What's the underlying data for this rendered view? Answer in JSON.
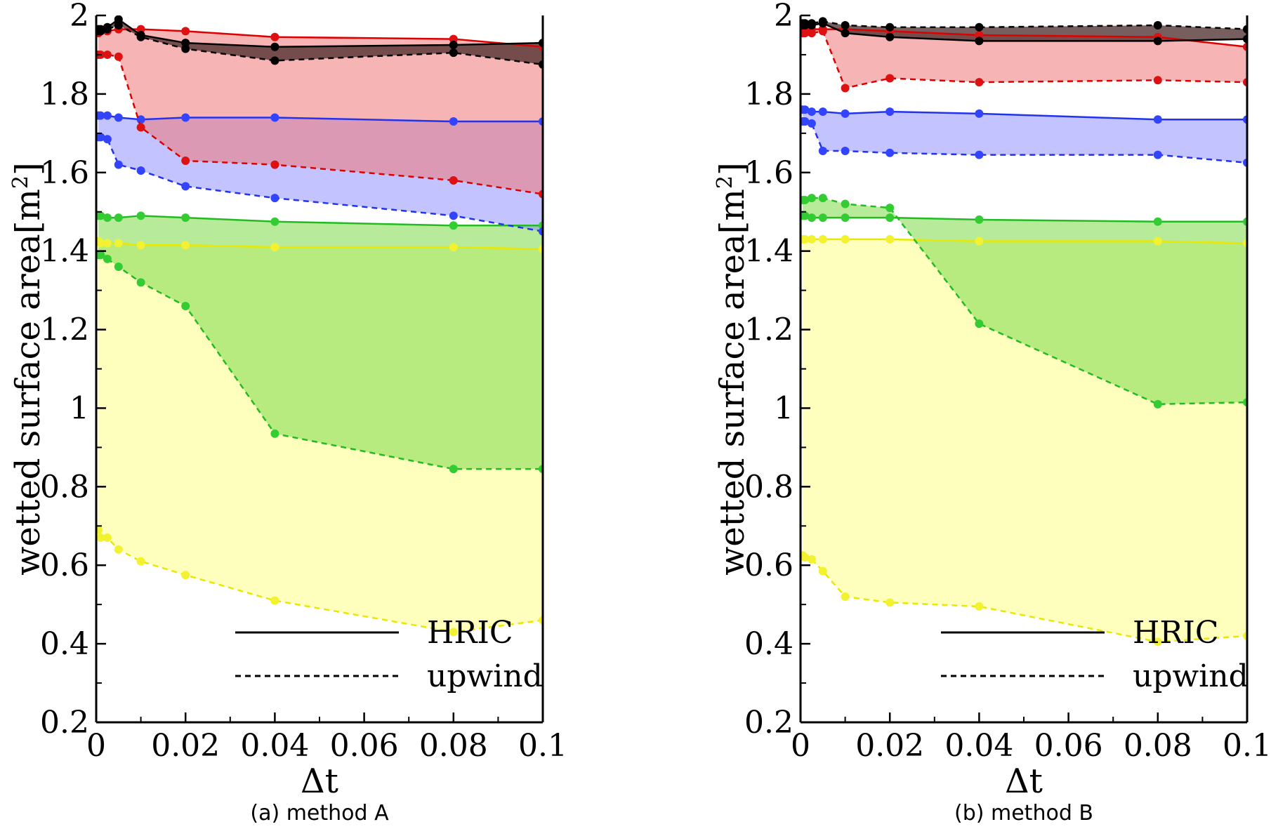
{
  "chart_data": [
    {
      "type": "line",
      "panel": "a",
      "caption": "(a) method A",
      "xlabel": "Δt",
      "ylabel": "wetted surface area[m",
      "ylabel_sup": "2",
      "ylabel_close": "]",
      "xlim": [
        0,
        0.1
      ],
      "ylim": [
        0.2,
        2.0
      ],
      "xticks": [
        0,
        0.02,
        0.04,
        0.06,
        0.08,
        0.1
      ],
      "xtick_labels": [
        "0",
        "0.02",
        "0.04",
        "0.06",
        "0.08",
        "0.1"
      ],
      "yticks": [
        0.2,
        0.4,
        0.6,
        0.8,
        1.0,
        1.2,
        1.4,
        1.6,
        1.8,
        2.0
      ],
      "ytick_labels": [
        "0.2",
        "0.4",
        "0.6",
        "0.8",
        "1",
        "1.2",
        "1.4",
        "1.6",
        "1.8",
        "2"
      ],
      "legend": [
        {
          "label": "HRIC",
          "style": "solid"
        },
        {
          "label": "upwind",
          "style": "dashed"
        }
      ],
      "groups": [
        {
          "name": "yellow",
          "color": "#e8e800",
          "fill": "#ffff99",
          "fill_opacity": 0.65,
          "marker": "#f2f230",
          "x": [
            0.0005,
            0.001,
            0.0025,
            0.005,
            0.01,
            0.02,
            0.04,
            0.08,
            0.1
          ],
          "hric": [
            1.425,
            1.42,
            1.42,
            1.42,
            1.415,
            1.415,
            1.41,
            1.41,
            1.405
          ],
          "upwind": [
            0.69,
            0.67,
            0.67,
            0.64,
            0.61,
            0.575,
            0.51,
            0.43,
            0.46
          ]
        },
        {
          "name": "green",
          "color": "#22bb22",
          "fill": "#88dd55",
          "fill_opacity": 0.6,
          "marker": "#33cc33",
          "x": [
            0.0005,
            0.001,
            0.0025,
            0.005,
            0.01,
            0.02,
            0.04,
            0.08,
            0.1
          ],
          "hric": [
            1.49,
            1.49,
            1.485,
            1.485,
            1.49,
            1.485,
            1.475,
            1.465,
            1.465
          ],
          "upwind": [
            1.39,
            1.39,
            1.38,
            1.36,
            1.32,
            1.26,
            0.935,
            0.845,
            0.845
          ]
        },
        {
          "name": "blue",
          "color": "#2233ee",
          "fill": "#8888ff",
          "fill_opacity": 0.5,
          "marker": "#3344ff",
          "x": [
            0.0005,
            0.001,
            0.0025,
            0.005,
            0.01,
            0.02,
            0.04,
            0.08,
            0.1
          ],
          "hric": [
            1.745,
            1.745,
            1.745,
            1.74,
            1.735,
            1.74,
            1.74,
            1.73,
            1.73
          ],
          "upwind": [
            1.69,
            1.69,
            1.685,
            1.62,
            1.605,
            1.565,
            1.535,
            1.49,
            1.45
          ]
        },
        {
          "name": "red",
          "color": "#dd0000",
          "fill": "#ee7777",
          "fill_opacity": 0.55,
          "marker": "#dd1111",
          "x": [
            0.0005,
            0.001,
            0.0025,
            0.005,
            0.01,
            0.02,
            0.04,
            0.08,
            0.1
          ],
          "hric": [
            1.955,
            1.96,
            1.96,
            1.965,
            1.965,
            1.96,
            1.945,
            1.94,
            1.92
          ],
          "upwind": [
            1.9,
            1.9,
            1.9,
            1.895,
            1.715,
            1.63,
            1.62,
            1.58,
            1.545
          ]
        },
        {
          "name": "black",
          "color": "#000000",
          "fill": "#4a2a2a",
          "fill_opacity": 0.75,
          "marker": "#000000",
          "x": [
            0.0005,
            0.001,
            0.0025,
            0.005,
            0.01,
            0.02,
            0.04,
            0.08,
            0.1
          ],
          "hric": [
            1.965,
            1.965,
            1.97,
            1.99,
            1.95,
            1.93,
            1.92,
            1.925,
            1.93
          ],
          "upwind": [
            1.96,
            1.96,
            1.965,
            1.975,
            1.945,
            1.915,
            1.885,
            1.905,
            1.875
          ]
        }
      ]
    },
    {
      "type": "line",
      "panel": "b",
      "caption": "(b) method B",
      "xlabel": "Δt",
      "ylabel": "wetted surface area[m",
      "ylabel_sup": "2",
      "ylabel_close": "]",
      "xlim": [
        0,
        0.1
      ],
      "ylim": [
        0.2,
        2.0
      ],
      "xticks": [
        0,
        0.02,
        0.04,
        0.06,
        0.08,
        0.1
      ],
      "xtick_labels": [
        "0",
        "0.02",
        "0.04",
        "0.06",
        "0.08",
        "0.1"
      ],
      "yticks": [
        0.2,
        0.4,
        0.6,
        0.8,
        1.0,
        1.2,
        1.4,
        1.6,
        1.8,
        2.0
      ],
      "ytick_labels": [
        "0.2",
        "0.4",
        "0.6",
        "0.8",
        "1",
        "1.2",
        "1.4",
        "1.6",
        "1.8",
        "2"
      ],
      "legend": [
        {
          "label": "HRIC",
          "style": "solid"
        },
        {
          "label": "upwind",
          "style": "dashed"
        }
      ],
      "groups": [
        {
          "name": "yellow",
          "color": "#e8e800",
          "fill": "#ffff99",
          "fill_opacity": 0.65,
          "marker": "#f2f230",
          "x": [
            0.0005,
            0.001,
            0.0025,
            0.005,
            0.01,
            0.02,
            0.04,
            0.08,
            0.1
          ],
          "hric": [
            1.43,
            1.43,
            1.43,
            1.43,
            1.43,
            1.43,
            1.425,
            1.425,
            1.42
          ],
          "upwind": [
            0.625,
            0.62,
            0.615,
            0.585,
            0.52,
            0.505,
            0.495,
            0.405,
            0.42
          ]
        },
        {
          "name": "green",
          "color": "#22bb22",
          "fill": "#88dd55",
          "fill_opacity": 0.6,
          "marker": "#33cc33",
          "x": [
            0.0005,
            0.001,
            0.0025,
            0.005,
            0.01,
            0.02,
            0.04,
            0.08,
            0.1
          ],
          "hric": [
            1.49,
            1.49,
            1.485,
            1.485,
            1.485,
            1.485,
            1.48,
            1.475,
            1.475
          ],
          "upwind": [
            1.53,
            1.53,
            1.535,
            1.535,
            1.52,
            1.51,
            1.215,
            1.01,
            1.015
          ]
        },
        {
          "name": "blue",
          "color": "#2233ee",
          "fill": "#8888ff",
          "fill_opacity": 0.5,
          "marker": "#3344ff",
          "x": [
            0.0005,
            0.001,
            0.0025,
            0.005,
            0.01,
            0.02,
            0.04,
            0.08,
            0.1
          ],
          "hric": [
            1.76,
            1.76,
            1.755,
            1.755,
            1.75,
            1.755,
            1.75,
            1.735,
            1.735
          ],
          "upwind": [
            1.73,
            1.73,
            1.725,
            1.655,
            1.655,
            1.65,
            1.645,
            1.645,
            1.625
          ]
        },
        {
          "name": "red",
          "color": "#dd0000",
          "fill": "#ee7777",
          "fill_opacity": 0.55,
          "marker": "#dd1111",
          "x": [
            0.0005,
            0.001,
            0.0025,
            0.005,
            0.01,
            0.02,
            0.04,
            0.08,
            0.1
          ],
          "hric": [
            1.955,
            1.96,
            1.965,
            1.965,
            1.965,
            1.96,
            1.95,
            1.945,
            1.92
          ],
          "upwind": [
            1.955,
            1.955,
            1.955,
            1.96,
            1.815,
            1.84,
            1.83,
            1.835,
            1.83
          ]
        },
        {
          "name": "black",
          "color": "#000000",
          "fill": "#4a2a2a",
          "fill_opacity": 0.75,
          "marker": "#000000",
          "x": [
            0.0005,
            0.001,
            0.0025,
            0.005,
            0.01,
            0.02,
            0.04,
            0.08,
            0.1
          ],
          "hric": [
            1.975,
            1.975,
            1.975,
            1.98,
            1.955,
            1.945,
            1.935,
            1.935,
            1.94
          ],
          "upwind": [
            1.98,
            1.98,
            1.98,
            1.985,
            1.975,
            1.97,
            1.97,
            1.975,
            1.965
          ]
        }
      ]
    }
  ]
}
